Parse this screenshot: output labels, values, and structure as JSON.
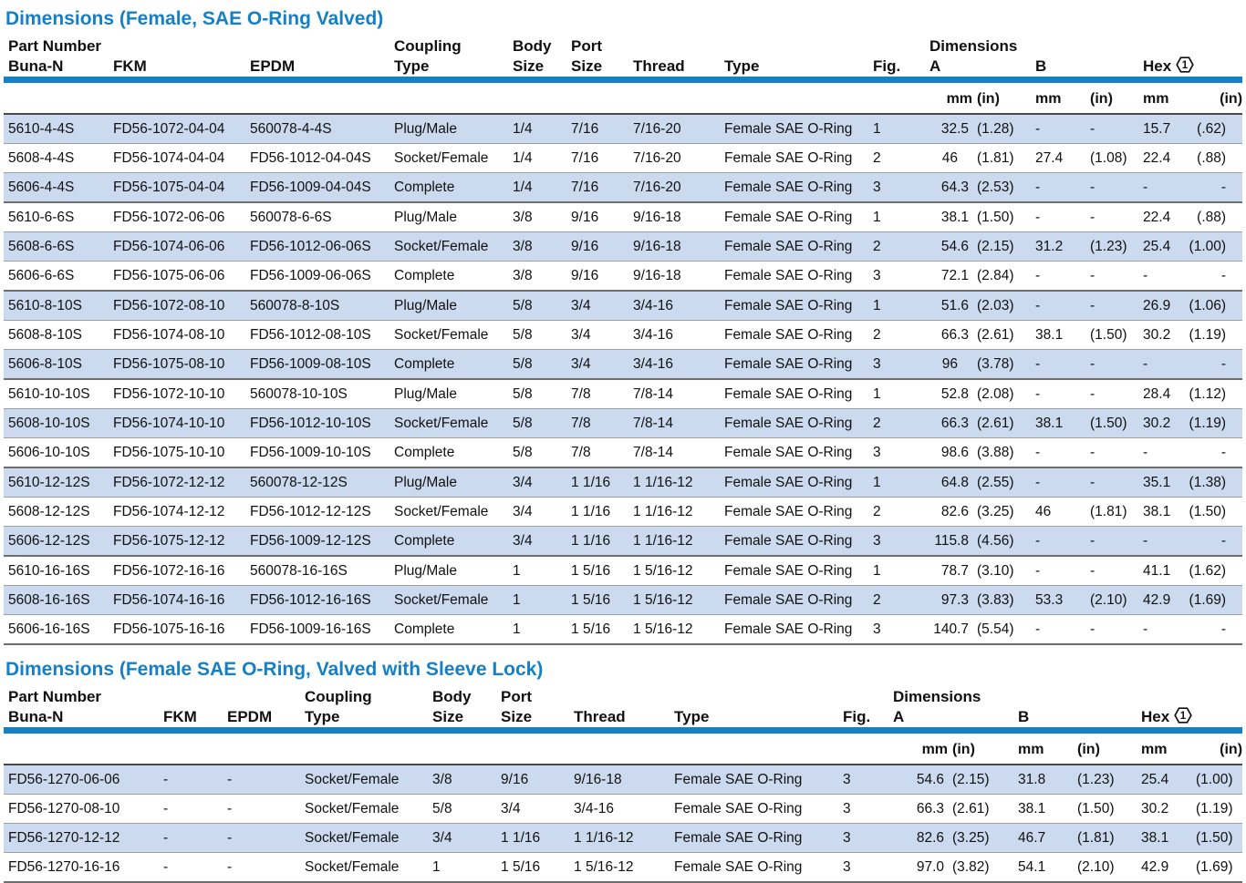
{
  "colors": {
    "accent_blue": "#1580c6",
    "row_shade_blue": "#cbdaee",
    "rule_dark": "#4a4a4a",
    "rule_gray": "#9aa0a6"
  },
  "footnote": {
    "marker": "1"
  },
  "tables": [
    {
      "title": "Dimensions (Female, SAE O-Ring Valved)",
      "header": {
        "part_number": "Part Number",
        "coupling": "Coupling",
        "body": "Body",
        "port": "Port",
        "dimensions": "Dimensions",
        "buna": "Buna-N",
        "fkm": "FKM",
        "epdm": "EPDM",
        "type": "Type",
        "size": "Size",
        "size2": "Size",
        "thread": "Thread",
        "type2": "Type",
        "fig": "Fig.",
        "a": "A",
        "b": "B",
        "hex": "Hex"
      },
      "units": [
        "mm",
        "(in)",
        "mm",
        "(in)",
        "mm",
        "(in)"
      ],
      "rows": [
        [
          "5610-4-4S",
          "FD56-1072-04-04",
          "560078-4-4S",
          "Plug/Male",
          "1/4",
          "7/16",
          "7/16-20",
          "Female SAE O-Ring",
          "1",
          "32.5",
          "(1.28)",
          "-",
          "-",
          "15.7",
          "(.62)"
        ],
        [
          "5608-4-4S",
          "FD56-1074-04-04",
          "FD56-1012-04-04S",
          "Socket/Female",
          "1/4",
          "7/16",
          "7/16-20",
          "Female SAE O-Ring",
          "2",
          "46",
          "(1.81)",
          "27.4",
          "(1.08)",
          "22.4",
          "(.88)"
        ],
        [
          "5606-4-4S",
          "FD56-1075-04-04",
          "FD56-1009-04-04S",
          "Complete",
          "1/4",
          "7/16",
          "7/16-20",
          "Female SAE O-Ring",
          "3",
          "64.3",
          "(2.53)",
          "-",
          "-",
          "-",
          "-"
        ],
        [
          "5610-6-6S",
          "FD56-1072-06-06",
          "560078-6-6S",
          "Plug/Male",
          "3/8",
          "9/16",
          "9/16-18",
          "Female SAE O-Ring",
          "1",
          "38.1",
          "(1.50)",
          "-",
          "-",
          "22.4",
          "(.88)"
        ],
        [
          "5608-6-6S",
          "FD56-1074-06-06",
          "FD56-1012-06-06S",
          "Socket/Female",
          "3/8",
          "9/16",
          "9/16-18",
          "Female SAE O-Ring",
          "2",
          "54.6",
          "(2.15)",
          "31.2",
          "(1.23)",
          "25.4",
          "(1.00)"
        ],
        [
          "5606-6-6S",
          "FD56-1075-06-06",
          "FD56-1009-06-06S",
          "Complete",
          "3/8",
          "9/16",
          "9/16-18",
          "Female SAE O-Ring",
          "3",
          "72.1",
          "(2.84)",
          "-",
          "-",
          "-",
          "-"
        ],
        [
          "5610-8-10S",
          "FD56-1072-08-10",
          "560078-8-10S",
          "Plug/Male",
          "5/8",
          "3/4",
          "3/4-16",
          "Female SAE O-Ring",
          "1",
          "51.6",
          "(2.03)",
          "-",
          "-",
          "26.9",
          "(1.06)"
        ],
        [
          "5608-8-10S",
          "FD56-1074-08-10",
          "FD56-1012-08-10S",
          "Socket/Female",
          "5/8",
          "3/4",
          "3/4-16",
          "Female SAE O-Ring",
          "2",
          "66.3",
          "(2.61)",
          "38.1",
          "(1.50)",
          "30.2",
          "(1.19)"
        ],
        [
          "5606-8-10S",
          "FD56-1075-08-10",
          "FD56-1009-08-10S",
          "Complete",
          "5/8",
          "3/4",
          "3/4-16",
          "Female SAE O-Ring",
          "3",
          "96",
          "(3.78)",
          "-",
          "-",
          "-",
          "-"
        ],
        [
          "5610-10-10S",
          "FD56-1072-10-10",
          "560078-10-10S",
          "Plug/Male",
          "5/8",
          "7/8",
          "7/8-14",
          "Female SAE O-Ring",
          "1",
          "52.8",
          "(2.08)",
          "-",
          "-",
          "28.4",
          "(1.12)"
        ],
        [
          "5608-10-10S",
          "FD56-1074-10-10",
          "FD56-1012-10-10S",
          "Socket/Female",
          "5/8",
          "7/8",
          "7/8-14",
          "Female SAE O-Ring",
          "2",
          "66.3",
          "(2.61)",
          "38.1",
          "(1.50)",
          "30.2",
          "(1.19)"
        ],
        [
          "5606-10-10S",
          "FD56-1075-10-10",
          "FD56-1009-10-10S",
          "Complete",
          "5/8",
          "7/8",
          "7/8-14",
          "Female SAE O-Ring",
          "3",
          "98.6",
          "(3.88)",
          "-",
          "-",
          "-",
          "-"
        ],
        [
          "5610-12-12S",
          "FD56-1072-12-12",
          "560078-12-12S",
          "Plug/Male",
          "3/4",
          "1 1/16",
          "1 1/16-12",
          "Female SAE O-Ring",
          "1",
          "64.8",
          "(2.55)",
          "-",
          "-",
          "35.1",
          "(1.38)"
        ],
        [
          "5608-12-12S",
          "FD56-1074-12-12",
          "FD56-1012-12-12S",
          "Socket/Female",
          "3/4",
          "1 1/16",
          "1 1/16-12",
          "Female SAE O-Ring",
          "2",
          "82.6",
          "(3.25)",
          "46",
          "(1.81)",
          "38.1",
          "(1.50)"
        ],
        [
          "5606-12-12S",
          "FD56-1075-12-12",
          "FD56-1009-12-12S",
          "Complete",
          "3/4",
          "1 1/16",
          "1 1/16-12",
          "Female SAE O-Ring",
          "3",
          "115.8",
          "(4.56)",
          "-",
          "-",
          "-",
          "-"
        ],
        [
          "5610-16-16S",
          "FD56-1072-16-16",
          "560078-16-16S",
          "Plug/Male",
          "1",
          "1 5/16",
          "1 5/16-12",
          "Female SAE O-Ring",
          "1",
          "78.7",
          "(3.10)",
          "-",
          "-",
          "41.1",
          "(1.62)"
        ],
        [
          "5608-16-16S",
          "FD56-1074-16-16",
          "FD56-1012-16-16S",
          "Socket/Female",
          "1",
          "1 5/16",
          "1 5/16-12",
          "Female SAE O-Ring",
          "2",
          "97.3",
          "(3.83)",
          "53.3",
          "(2.10)",
          "42.9",
          "(1.69)"
        ],
        [
          "5606-16-16S",
          "FD56-1075-16-16",
          "FD56-1009-16-16S",
          "Complete",
          "1",
          "1 5/16",
          "1 5/16-12",
          "Female SAE O-Ring",
          "3",
          "140.7",
          "(5.54)",
          "-",
          "-",
          "-",
          "-"
        ]
      ]
    },
    {
      "title": "Dimensions (Female SAE O-Ring, Valved with Sleeve Lock)",
      "header": {
        "part_number": "Part Number",
        "coupling": "Coupling",
        "body": "Body",
        "port": "Port",
        "dimensions": "Dimensions",
        "buna": "Buna-N",
        "fkm": "FKM",
        "epdm": "EPDM",
        "type": "Type",
        "size": "Size",
        "size2": "Size",
        "thread": "Thread",
        "type2": "Type",
        "fig": "Fig.",
        "a": "A",
        "b": "B",
        "hex": "Hex"
      },
      "units": [
        "mm",
        "(in)",
        "mm",
        "(in)",
        "mm",
        "(in)"
      ],
      "rows": [
        [
          "FD56-1270-06-06",
          "-",
          "-",
          "Socket/Female",
          "3/8",
          "9/16",
          "9/16-18",
          "Female SAE O-Ring",
          "3",
          "54.6",
          "(2.15)",
          "31.8",
          "(1.23)",
          "25.4",
          "(1.00)"
        ],
        [
          "FD56-1270-08-10",
          "-",
          "-",
          "Socket/Female",
          "5/8",
          "3/4",
          "3/4-16",
          "Female SAE O-Ring",
          "3",
          "66.3",
          "(2.61)",
          "38.1",
          "(1.50)",
          "30.2",
          "(1.19)"
        ],
        [
          "FD56-1270-12-12",
          "-",
          "-",
          "Socket/Female",
          "3/4",
          "1 1/16",
          "1 1/16-12",
          "Female SAE O-Ring",
          "3",
          "82.6",
          "(3.25)",
          "46.7",
          "(1.81)",
          "38.1",
          "(1.50)"
        ],
        [
          "FD56-1270-16-16",
          "-",
          "-",
          "Socket/Female",
          "1",
          "1 5/16",
          "1 5/16-12",
          "Female SAE O-Ring",
          "3",
          "97.0",
          "(3.82)",
          "54.1",
          "(2.10)",
          "42.9",
          "(1.69)"
        ]
      ]
    }
  ]
}
